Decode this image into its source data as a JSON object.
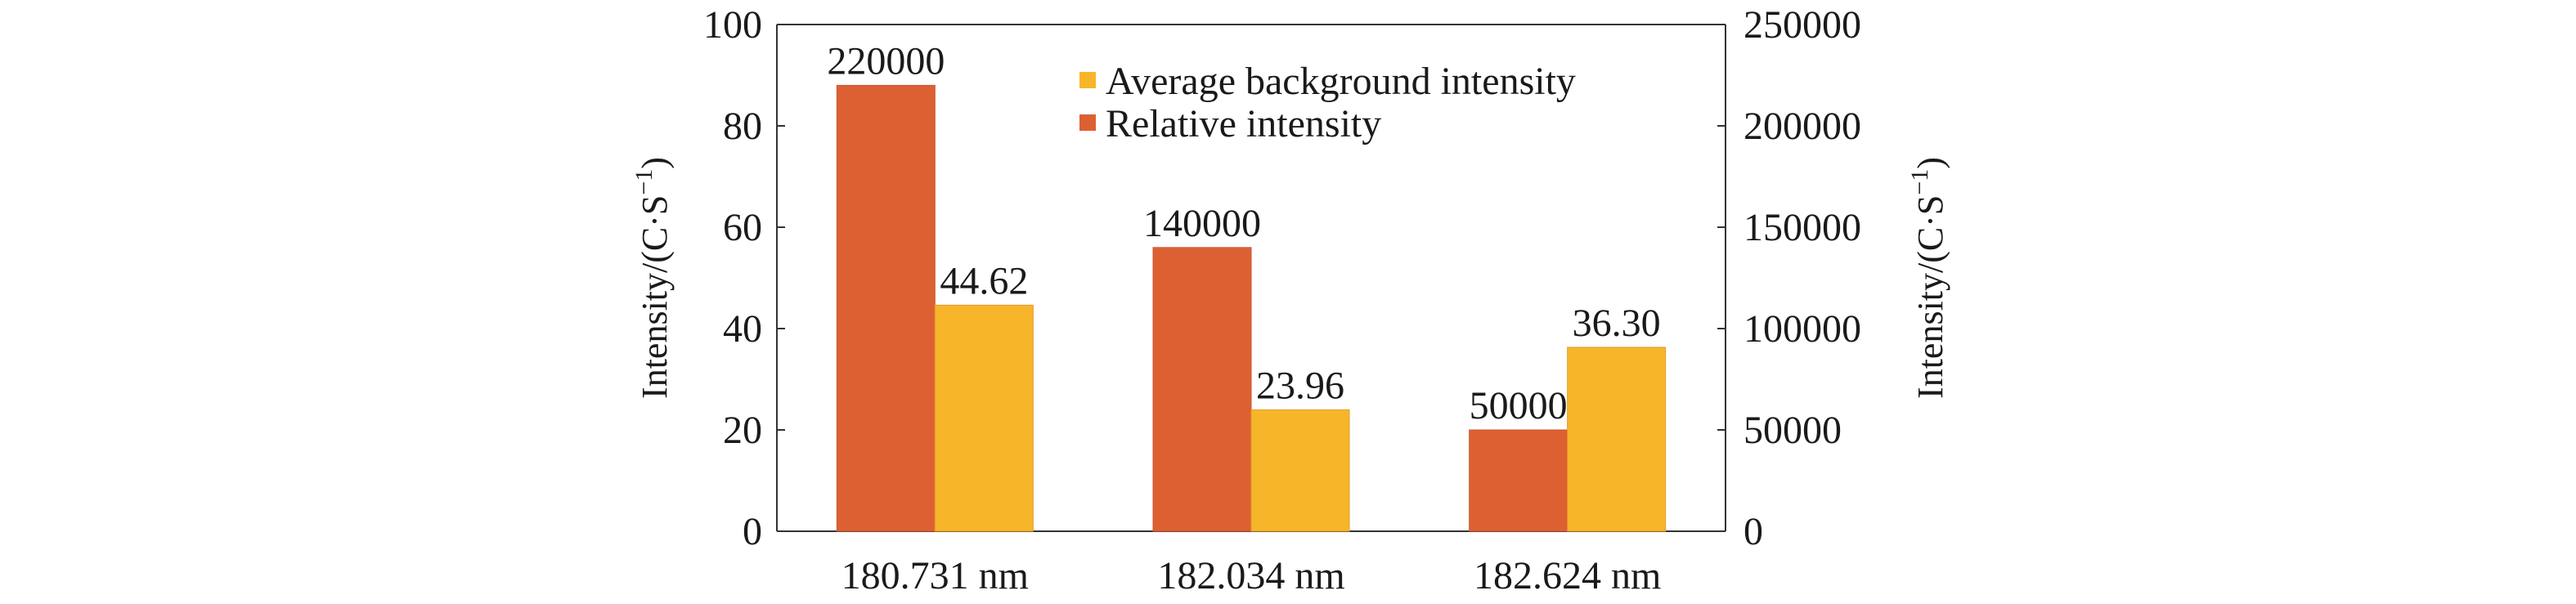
{
  "chart_data": {
    "type": "bar",
    "categories": [
      "180.731 nm",
      "182.034 nm",
      "182.624 nm"
    ],
    "series": [
      {
        "name": "Relative intensity",
        "axis": "right",
        "color": "#DD6033",
        "values": [
          220000,
          140000,
          50000
        ],
        "labels": [
          "220000",
          "140000",
          "50000"
        ]
      },
      {
        "name": "Average background intensity",
        "axis": "left",
        "color": "#F7B62A",
        "values": [
          44.62,
          23.96,
          36.3
        ],
        "labels": [
          "44.62",
          "23.96",
          "36.30"
        ]
      }
    ],
    "legend": {
      "placement": "top-center",
      "entries": [
        "Average background intensity",
        "Relative intensity"
      ]
    },
    "y_left": {
      "label": "Intensity/(C·S",
      "label_sup": "−1",
      "label_end": ")",
      "lim": [
        0,
        100
      ],
      "ticks": [
        "0",
        "20",
        "40",
        "60",
        "80",
        "100"
      ]
    },
    "y_right": {
      "label": "Intensity/(C·S",
      "label_sup": "−1",
      "label_end": ")",
      "lim": [
        0,
        250000
      ],
      "ticks": [
        "0",
        "50000",
        "100000",
        "150000",
        "200000",
        "250000"
      ]
    },
    "grid": false
  }
}
